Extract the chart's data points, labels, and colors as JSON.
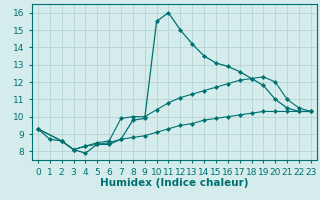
{
  "title": "",
  "xlabel": "Humidex (Indice chaleur)",
  "ylabel": "",
  "bg_color": "#d4ecec",
  "grid_color": "#b8d4d4",
  "line_color": "#007070",
  "xlim": [
    -0.5,
    23.5
  ],
  "ylim": [
    7.5,
    16.5
  ],
  "xticks": [
    0,
    1,
    2,
    3,
    4,
    5,
    6,
    7,
    8,
    9,
    10,
    11,
    12,
    13,
    14,
    15,
    16,
    17,
    18,
    19,
    20,
    21,
    22,
    23
  ],
  "yticks": [
    8,
    9,
    10,
    11,
    12,
    13,
    14,
    15,
    16
  ],
  "series": [
    {
      "x": [
        0,
        1,
        2,
        3,
        4,
        5,
        6,
        7,
        8,
        9,
        10,
        11,
        12,
        13,
        14,
        15,
        16,
        17,
        18,
        19,
        20,
        21,
        22,
        23
      ],
      "y": [
        9.3,
        8.7,
        8.6,
        8.1,
        7.9,
        8.4,
        8.4,
        8.7,
        9.8,
        9.9,
        15.5,
        16.0,
        15.0,
        14.2,
        13.5,
        13.1,
        12.9,
        12.6,
        12.2,
        11.8,
        11.0,
        10.5,
        10.3,
        10.3
      ]
    },
    {
      "x": [
        0,
        2,
        3,
        4,
        5,
        6,
        7,
        8,
        9,
        10,
        11,
        12,
        13,
        14,
        15,
        16,
        17,
        18,
        19,
        20,
        21,
        22,
        23
      ],
      "y": [
        9.3,
        8.6,
        8.1,
        8.3,
        8.5,
        8.6,
        9.9,
        10.0,
        10.0,
        10.4,
        10.8,
        11.1,
        11.3,
        11.5,
        11.7,
        11.9,
        12.1,
        12.2,
        12.3,
        12.0,
        11.0,
        10.5,
        10.3
      ]
    },
    {
      "x": [
        0,
        2,
        3,
        4,
        5,
        6,
        7,
        8,
        9,
        10,
        11,
        12,
        13,
        14,
        15,
        16,
        17,
        18,
        19,
        20,
        21,
        22,
        23
      ],
      "y": [
        9.3,
        8.6,
        8.1,
        8.3,
        8.4,
        8.5,
        8.7,
        8.8,
        8.9,
        9.1,
        9.3,
        9.5,
        9.6,
        9.8,
        9.9,
        10.0,
        10.1,
        10.2,
        10.3,
        10.3,
        10.3,
        10.3,
        10.3
      ]
    }
  ],
  "xlabel_fontsize": 7.5,
  "tick_fontsize": 6.5
}
